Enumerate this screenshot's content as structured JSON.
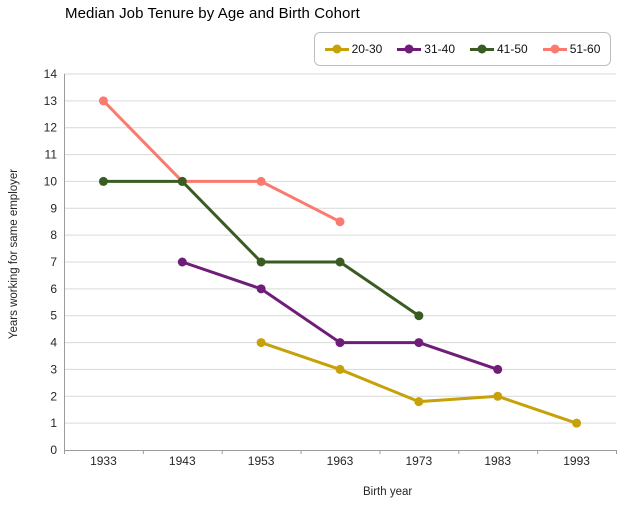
{
  "chart_data": {
    "type": "line",
    "title": "Median Job Tenure by Age and Birth Cohort",
    "xlabel": "Birth year",
    "ylabel": "Years working for same employer",
    "x_categories": [
      1933,
      1943,
      1953,
      1963,
      1973,
      1983,
      1993
    ],
    "ylim": [
      0,
      14
    ],
    "ytick_step": 1,
    "grid": "horizontal",
    "grid_color": "#D9D9D9",
    "axis_color": "#9C9C9C",
    "tick_label_color": "#262626",
    "legend_position": "top-right",
    "series": [
      {
        "name": "20-30",
        "color": "#C7A109",
        "x": [
          1953,
          1963,
          1973,
          1983,
          1993
        ],
        "y": [
          4,
          3,
          1.8,
          2,
          1
        ]
      },
      {
        "name": "31-40",
        "color": "#6E1E78",
        "x": [
          1943,
          1953,
          1963,
          1973,
          1983
        ],
        "y": [
          7,
          6,
          4,
          4,
          3
        ]
      },
      {
        "name": "41-50",
        "color": "#3A5B22",
        "x": [
          1933,
          1943,
          1953,
          1963,
          1973
        ],
        "y": [
          10,
          10,
          7,
          7,
          5
        ]
      },
      {
        "name": "51-60",
        "color": "#FA7A70",
        "x": [
          1933,
          1943,
          1953,
          1963
        ],
        "y": [
          13,
          10,
          10,
          8.5
        ]
      }
    ]
  }
}
